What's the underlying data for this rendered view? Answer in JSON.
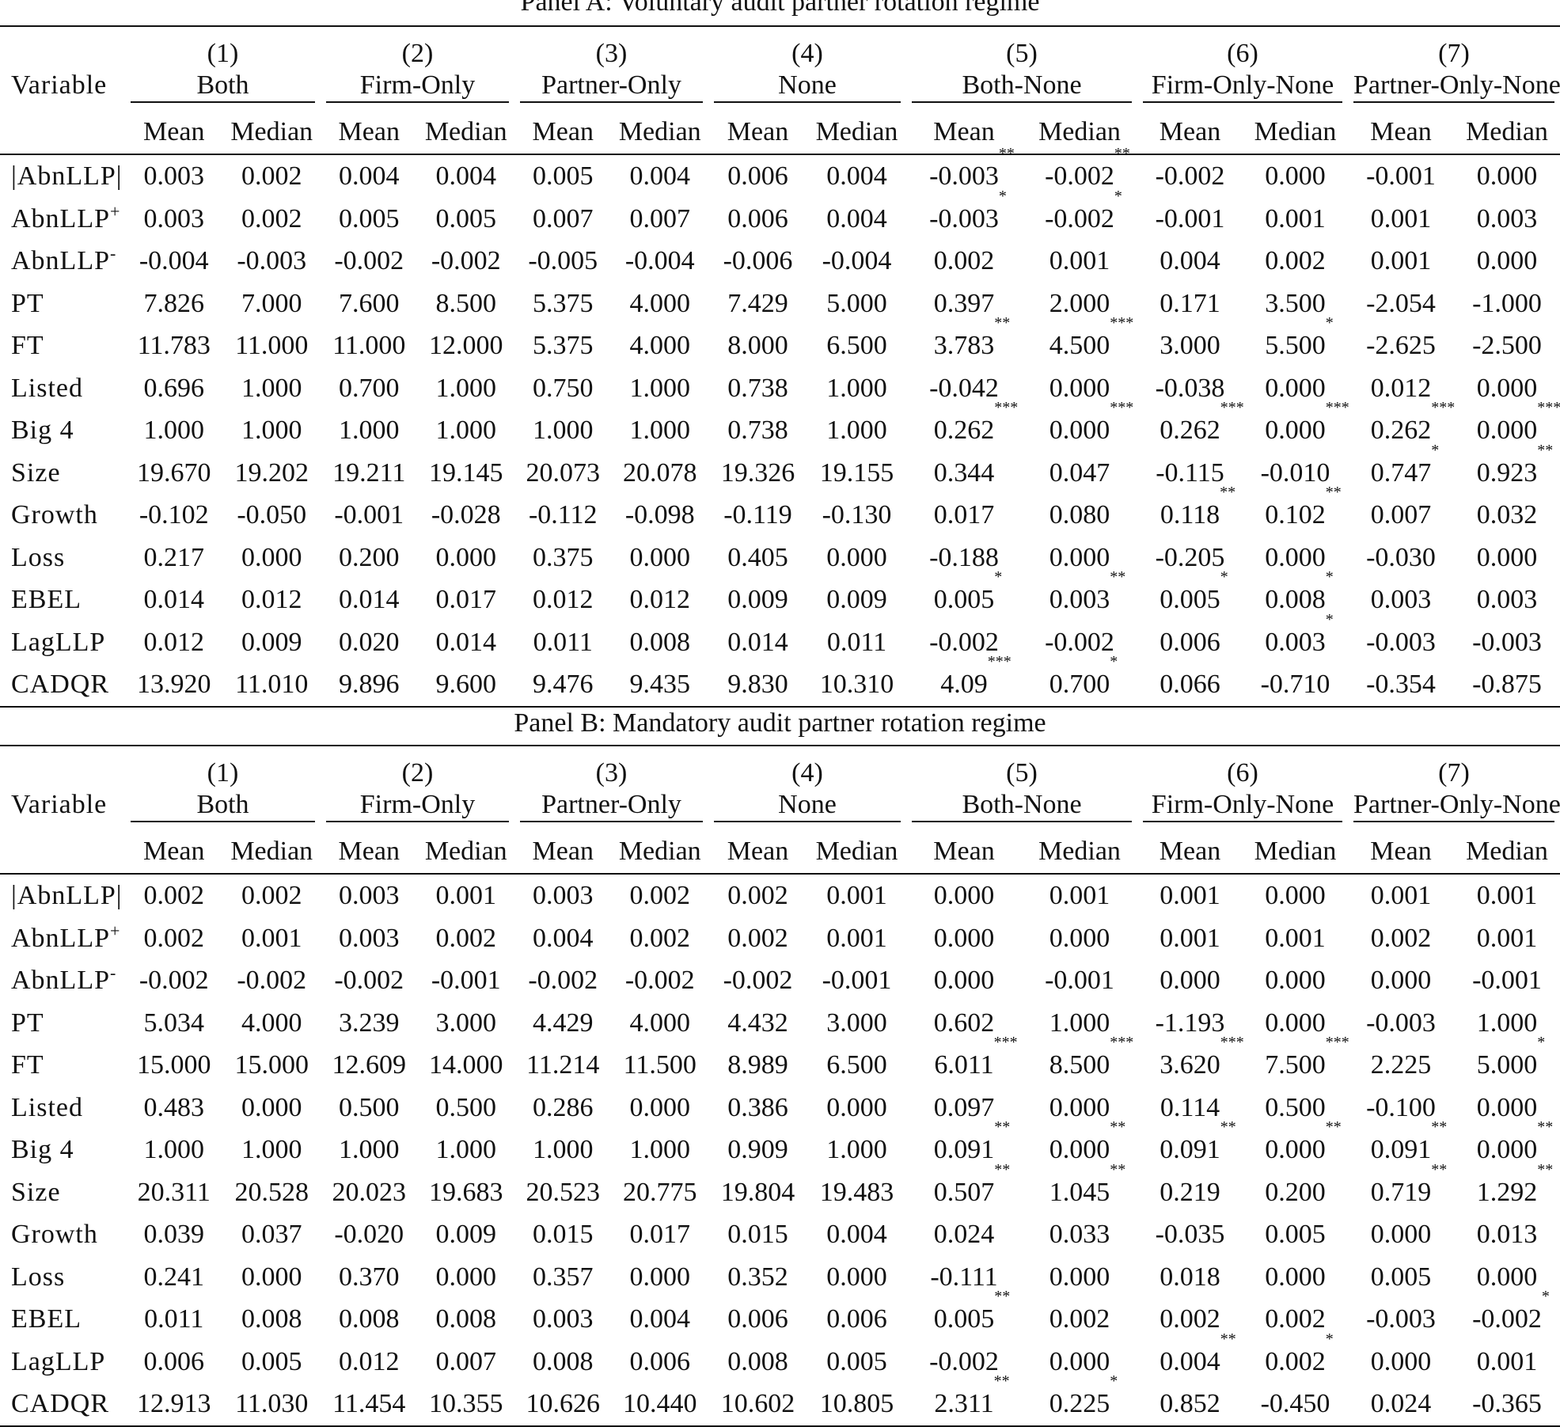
{
  "panels": [
    {
      "title": "Panel A: Voluntary audit partner rotation regime",
      "variable_header": "Variable",
      "groups": [
        {
          "num": "(1)",
          "label": "Both"
        },
        {
          "num": "(2)",
          "label": "Firm-Only"
        },
        {
          "num": "(3)",
          "label": "Partner-Only"
        },
        {
          "num": "(4)",
          "label": "None"
        },
        {
          "num": "(5)",
          "label": "Both-None"
        },
        {
          "num": "(6)",
          "label": "Firm-Only-None"
        },
        {
          "num": "(7)",
          "label": "Partner-Only-None"
        }
      ],
      "subheaders": [
        "Mean",
        "Median"
      ],
      "rows": [
        {
          "variable": "|AbnLLP|",
          "sup": "",
          "values": [
            "0.003",
            "0.002",
            "0.004",
            "0.004",
            "0.005",
            "0.004",
            "0.006",
            "0.004",
            "-0.003",
            "-0.002",
            "-0.002",
            "0.000",
            "-0.001",
            "0.000"
          ],
          "stars": [
            "",
            "",
            "",
            "",
            "",
            "",
            "",
            "",
            "**",
            "**",
            "",
            "",
            "",
            ""
          ]
        },
        {
          "variable": "AbnLLP",
          "sup": "+",
          "values": [
            "0.003",
            "0.002",
            "0.005",
            "0.005",
            "0.007",
            "0.007",
            "0.006",
            "0.004",
            "-0.003",
            "-0.002",
            "-0.001",
            "0.001",
            "0.001",
            "0.003"
          ],
          "stars": [
            "",
            "",
            "",
            "",
            "",
            "",
            "",
            "",
            "*",
            "*",
            "",
            "",
            "",
            ""
          ]
        },
        {
          "variable": "AbnLLP",
          "sup": "-",
          "values": [
            "-0.004",
            "-0.003",
            "-0.002",
            "-0.002",
            "-0.005",
            "-0.004",
            "-0.006",
            "-0.004",
            "0.002",
            "0.001",
            "0.004",
            "0.002",
            "0.001",
            "0.000"
          ],
          "stars": [
            "",
            "",
            "",
            "",
            "",
            "",
            "",
            "",
            "",
            "",
            "",
            "",
            "",
            ""
          ]
        },
        {
          "variable": "PT",
          "sup": "",
          "values": [
            "7.826",
            "7.000",
            "7.600",
            "8.500",
            "5.375",
            "4.000",
            "7.429",
            "5.000",
            "0.397",
            "2.000",
            "0.171",
            "3.500",
            "-2.054",
            "-1.000"
          ],
          "stars": [
            "",
            "",
            "",
            "",
            "",
            "",
            "",
            "",
            "",
            "",
            "",
            "",
            "",
            ""
          ]
        },
        {
          "variable": "FT",
          "sup": "",
          "values": [
            "11.783",
            "11.000",
            "11.000",
            "12.000",
            "5.375",
            "4.000",
            "8.000",
            "6.500",
            "3.783",
            "4.500",
            "3.000",
            "5.500",
            "-2.625",
            "-2.500"
          ],
          "stars": [
            "",
            "",
            "",
            "",
            "",
            "",
            "",
            "",
            "**",
            "***",
            "",
            "*",
            "",
            ""
          ]
        },
        {
          "variable": "Listed",
          "sup": "",
          "values": [
            "0.696",
            "1.000",
            "0.700",
            "1.000",
            "0.750",
            "1.000",
            "0.738",
            "1.000",
            "-0.042",
            "0.000",
            "-0.038",
            "0.000",
            "0.012",
            "0.000"
          ],
          "stars": [
            "",
            "",
            "",
            "",
            "",
            "",
            "",
            "",
            "",
            "",
            "",
            "",
            "",
            ""
          ]
        },
        {
          "variable": "Big 4",
          "sup": "",
          "values": [
            "1.000",
            "1.000",
            "1.000",
            "1.000",
            "1.000",
            "1.000",
            "0.738",
            "1.000",
            "0.262",
            "0.000",
            "0.262",
            "0.000",
            "0.262",
            "0.000"
          ],
          "stars": [
            "",
            "",
            "",
            "",
            "",
            "",
            "",
            "",
            "***",
            "***",
            "***",
            "***",
            "***",
            "***"
          ]
        },
        {
          "variable": "Size",
          "sup": "",
          "values": [
            "19.670",
            "19.202",
            "19.211",
            "19.145",
            "20.073",
            "20.078",
            "19.326",
            "19.155",
            "0.344",
            "0.047",
            "-0.115",
            "-0.010",
            "0.747",
            "0.923"
          ],
          "stars": [
            "",
            "",
            "",
            "",
            "",
            "",
            "",
            "",
            "",
            "",
            "",
            "",
            "*",
            "**"
          ]
        },
        {
          "variable": "Growth",
          "sup": "",
          "values": [
            "-0.102",
            "-0.050",
            "-0.001",
            "-0.028",
            "-0.112",
            "-0.098",
            "-0.119",
            "-0.130",
            "0.017",
            "0.080",
            "0.118",
            "0.102",
            "0.007",
            "0.032"
          ],
          "stars": [
            "",
            "",
            "",
            "",
            "",
            "",
            "",
            "",
            "",
            "",
            "**",
            "**",
            "",
            ""
          ]
        },
        {
          "variable": "Loss",
          "sup": "",
          "values": [
            "0.217",
            "0.000",
            "0.200",
            "0.000",
            "0.375",
            "0.000",
            "0.405",
            "0.000",
            "-0.188",
            "0.000",
            "-0.205",
            "0.000",
            "-0.030",
            "0.000"
          ],
          "stars": [
            "",
            "",
            "",
            "",
            "",
            "",
            "",
            "",
            "",
            "",
            "",
            "",
            "",
            ""
          ]
        },
        {
          "variable": "EBEL",
          "sup": "",
          "values": [
            "0.014",
            "0.012",
            "0.014",
            "0.017",
            "0.012",
            "0.012",
            "0.009",
            "0.009",
            "0.005",
            "0.003",
            "0.005",
            "0.008",
            "0.003",
            "0.003"
          ],
          "stars": [
            "",
            "",
            "",
            "",
            "",
            "",
            "",
            "",
            "*",
            "**",
            "*",
            "*",
            "",
            ""
          ]
        },
        {
          "variable": "LagLLP",
          "sup": "",
          "values": [
            "0.012",
            "0.009",
            "0.020",
            "0.014",
            "0.011",
            "0.008",
            "0.014",
            "0.011",
            "-0.002",
            "-0.002",
            "0.006",
            "0.003",
            "-0.003",
            "-0.003"
          ],
          "stars": [
            "",
            "",
            "",
            "",
            "",
            "",
            "",
            "",
            "",
            "",
            "",
            "*",
            "",
            ""
          ]
        },
        {
          "variable": "CADQR",
          "sup": "",
          "values": [
            "13.920",
            "11.010",
            "9.896",
            "9.600",
            "9.476",
            "9.435",
            "9.830",
            "10.310",
            "4.09",
            "0.700",
            "0.066",
            "-0.710",
            "-0.354",
            "-0.875"
          ],
          "stars": [
            "",
            "",
            "",
            "",
            "",
            "",
            "",
            "",
            "***",
            "*",
            "",
            "",
            "",
            ""
          ]
        }
      ]
    },
    {
      "title": "Panel B: Mandatory audit partner rotation regime",
      "variable_header": "Variable",
      "groups": [
        {
          "num": "(1)",
          "label": "Both"
        },
        {
          "num": "(2)",
          "label": "Firm-Only"
        },
        {
          "num": "(3)",
          "label": "Partner-Only"
        },
        {
          "num": "(4)",
          "label": "None"
        },
        {
          "num": "(5)",
          "label": "Both-None"
        },
        {
          "num": "(6)",
          "label": "Firm-Only-None"
        },
        {
          "num": "(7)",
          "label": "Partner-Only-None"
        }
      ],
      "subheaders": [
        "Mean",
        "Median"
      ],
      "rows": [
        {
          "variable": "|AbnLLP|",
          "sup": "",
          "values": [
            "0.002",
            "0.002",
            "0.003",
            "0.001",
            "0.003",
            "0.002",
            "0.002",
            "0.001",
            "0.000",
            "0.001",
            "0.001",
            "0.000",
            "0.001",
            "0.001"
          ],
          "stars": [
            "",
            "",
            "",
            "",
            "",
            "",
            "",
            "",
            "",
            "",
            "",
            "",
            "",
            ""
          ]
        },
        {
          "variable": "AbnLLP",
          "sup": "+",
          "values": [
            "0.002",
            "0.001",
            "0.003",
            "0.002",
            "0.004",
            "0.002",
            "0.002",
            "0.001",
            "0.000",
            "0.000",
            "0.001",
            "0.001",
            "0.002",
            "0.001"
          ],
          "stars": [
            "",
            "",
            "",
            "",
            "",
            "",
            "",
            "",
            "",
            "",
            "",
            "",
            "",
            ""
          ]
        },
        {
          "variable": "AbnLLP",
          "sup": "-",
          "values": [
            "-0.002",
            "-0.002",
            "-0.002",
            "-0.001",
            "-0.002",
            "-0.002",
            "-0.002",
            "-0.001",
            "0.000",
            "-0.001",
            "0.000",
            "0.000",
            "0.000",
            "-0.001"
          ],
          "stars": [
            "",
            "",
            "",
            "",
            "",
            "",
            "",
            "",
            "",
            "",
            "",
            "",
            "",
            ""
          ]
        },
        {
          "variable": "PT",
          "sup": "",
          "values": [
            "5.034",
            "4.000",
            "3.239",
            "3.000",
            "4.429",
            "4.000",
            "4.432",
            "3.000",
            "0.602",
            "1.000",
            "-1.193",
            "0.000",
            "-0.003",
            "1.000"
          ],
          "stars": [
            "",
            "",
            "",
            "",
            "",
            "",
            "",
            "",
            "",
            "",
            "",
            "",
            "",
            ""
          ]
        },
        {
          "variable": "FT",
          "sup": "",
          "values": [
            "15.000",
            "15.000",
            "12.609",
            "14.000",
            "11.214",
            "11.500",
            "8.989",
            "6.500",
            "6.011",
            "8.500",
            "3.620",
            "7.500",
            "2.225",
            "5.000"
          ],
          "stars": [
            "",
            "",
            "",
            "",
            "",
            "",
            "",
            "",
            "***",
            "***",
            "***",
            "***",
            "",
            "*"
          ]
        },
        {
          "variable": "Listed",
          "sup": "",
          "values": [
            "0.483",
            "0.000",
            "0.500",
            "0.500",
            "0.286",
            "0.000",
            "0.386",
            "0.000",
            "0.097",
            "0.000",
            "0.114",
            "0.500",
            "-0.100",
            "0.000"
          ],
          "stars": [
            "",
            "",
            "",
            "",
            "",
            "",
            "",
            "",
            "",
            "",
            "",
            "",
            "",
            ""
          ]
        },
        {
          "variable": "Big 4",
          "sup": "",
          "values": [
            "1.000",
            "1.000",
            "1.000",
            "1.000",
            "1.000",
            "1.000",
            "0.909",
            "1.000",
            "0.091",
            "0.000",
            "0.091",
            "0.000",
            "0.091",
            "0.000"
          ],
          "stars": [
            "",
            "",
            "",
            "",
            "",
            "",
            "",
            "",
            "**",
            "**",
            "**",
            "**",
            "**",
            "**"
          ]
        },
        {
          "variable": "Size",
          "sup": "",
          "values": [
            "20.311",
            "20.528",
            "20.023",
            "19.683",
            "20.523",
            "20.775",
            "19.804",
            "19.483",
            "0.507",
            "1.045",
            "0.219",
            "0.200",
            "0.719",
            "1.292"
          ],
          "stars": [
            "",
            "",
            "",
            "",
            "",
            "",
            "",
            "",
            "**",
            "**",
            "",
            "",
            "**",
            "**"
          ]
        },
        {
          "variable": "Growth",
          "sup": "",
          "values": [
            "0.039",
            "0.037",
            "-0.020",
            "0.009",
            "0.015",
            "0.017",
            "0.015",
            "0.004",
            "0.024",
            "0.033",
            "-0.035",
            "0.005",
            "0.000",
            "0.013"
          ],
          "stars": [
            "",
            "",
            "",
            "",
            "",
            "",
            "",
            "",
            "",
            "",
            "",
            "",
            "",
            ""
          ]
        },
        {
          "variable": "Loss",
          "sup": "",
          "values": [
            "0.241",
            "0.000",
            "0.370",
            "0.000",
            "0.357",
            "0.000",
            "0.352",
            "0.000",
            "-0.111",
            "0.000",
            "0.018",
            "0.000",
            "0.005",
            "0.000"
          ],
          "stars": [
            "",
            "",
            "",
            "",
            "",
            "",
            "",
            "",
            "",
            "",
            "",
            "",
            "",
            ""
          ]
        },
        {
          "variable": "EBEL",
          "sup": "",
          "values": [
            "0.011",
            "0.008",
            "0.008",
            "0.008",
            "0.003",
            "0.004",
            "0.006",
            "0.006",
            "0.005",
            "0.002",
            "0.002",
            "0.002",
            "-0.003",
            "-0.002"
          ],
          "stars": [
            "",
            "",
            "",
            "",
            "",
            "",
            "",
            "",
            "**",
            "",
            "",
            "",
            "",
            "*"
          ]
        },
        {
          "variable": "LagLLP",
          "sup": "",
          "values": [
            "0.006",
            "0.005",
            "0.012",
            "0.007",
            "0.008",
            "0.006",
            "0.008",
            "0.005",
            "-0.002",
            "0.000",
            "0.004",
            "0.002",
            "0.000",
            "0.001"
          ],
          "stars": [
            "",
            "",
            "",
            "",
            "",
            "",
            "",
            "",
            "",
            "",
            "**",
            "*",
            "",
            ""
          ]
        },
        {
          "variable": "CADQR",
          "sup": "",
          "values": [
            "12.913",
            "11.030",
            "11.454",
            "10.355",
            "10.626",
            "10.440",
            "10.602",
            "10.805",
            "2.311",
            "0.225",
            "0.852",
            "-0.450",
            "0.024",
            "-0.365"
          ],
          "stars": [
            "",
            "",
            "",
            "",
            "",
            "",
            "",
            "",
            "**",
            "*",
            "",
            "",
            "",
            ""
          ]
        }
      ]
    }
  ]
}
